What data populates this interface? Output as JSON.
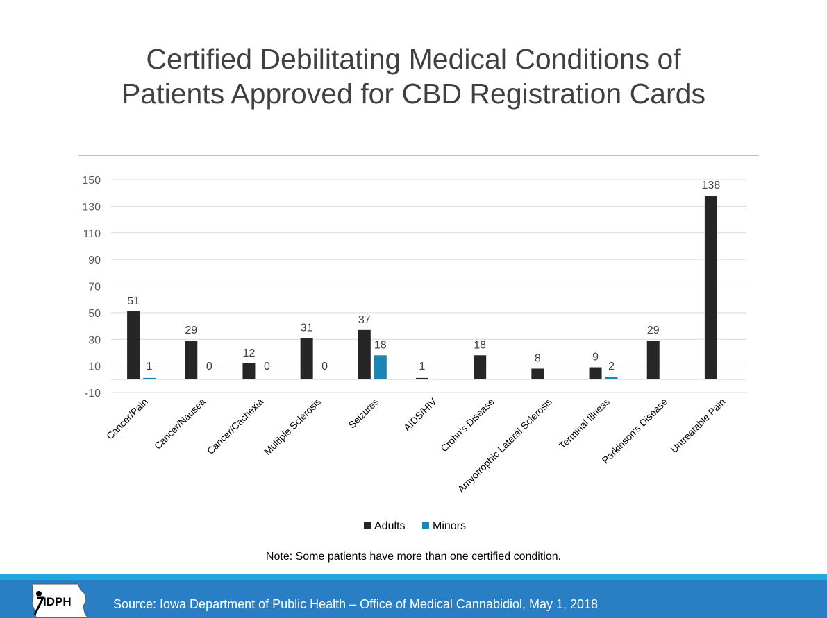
{
  "title_line1": "Certified Debilitating Medical Conditions of",
  "title_line2": "Patients Approved for CBD Registration Cards",
  "note": "Note:  Some patients have more than one certified condition.",
  "source": "Source:  Iowa Department of Public Health – Office of Medical Cannabidiol, May 1, 2018",
  "logo_text": "IDPH",
  "chart_data": {
    "type": "bar",
    "title": "",
    "xlabel": "",
    "ylabel": "",
    "ylim": [
      -10,
      150
    ],
    "yticks": [
      -10,
      10,
      30,
      50,
      70,
      90,
      110,
      130,
      150
    ],
    "grid": true,
    "legend": "bottom",
    "categories": [
      "Cancer/Pain",
      "Cancer/Nausea",
      "Cancer/Cachexia",
      "Multiple Sclerosis",
      "Seizures",
      "AIDS/HIV",
      "Crohn's Disease",
      "Amyotrophic Lateral Sclerosis",
      "Terminal Illness",
      "Parkinson's Disease",
      "Untreatable Pain"
    ],
    "series": [
      {
        "name": "Adults",
        "color": "#262626",
        "values": [
          51,
          29,
          12,
          31,
          37,
          1,
          18,
          8,
          9,
          29,
          138
        ]
      },
      {
        "name": "Minors",
        "color": "#1a86b4",
        "values": [
          1,
          0,
          0,
          0,
          18,
          null,
          null,
          null,
          2,
          null,
          null
        ]
      }
    ]
  }
}
